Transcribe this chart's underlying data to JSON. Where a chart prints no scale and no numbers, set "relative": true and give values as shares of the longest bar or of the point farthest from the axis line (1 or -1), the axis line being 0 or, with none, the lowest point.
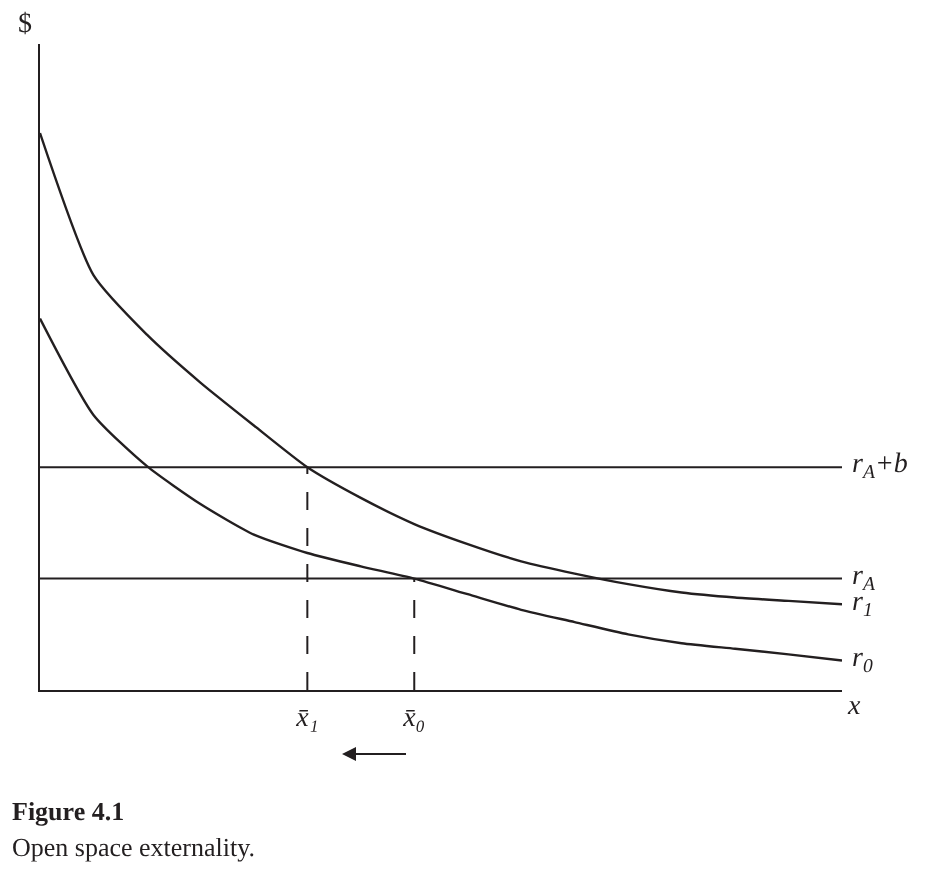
{
  "chart_data": {
    "type": "line",
    "relative": true,
    "xlabel": "x",
    "ylabel": "$",
    "categories": [
      null,
      null,
      null,
      null,
      null,
      "x̄₁",
      null,
      "x̄₀",
      null,
      null,
      null,
      null,
      null,
      null,
      null,
      null
    ],
    "series": [
      {
        "name": "r$_{1}$",
        "color": "#231f20",
        "values": [
          1,
          0.745,
          0.638,
          0.552,
          0.475,
          0.4,
          0.345,
          0.298,
          0.262,
          0.231,
          0.209,
          0.19,
          0.175,
          0.166,
          0.16,
          0.154
        ]
      },
      {
        "name": "r$_{0}$",
        "color": "#231f20",
        "values": [
          0.667,
          0.494,
          0.402,
          0.334,
          0.279,
          0.246,
          0.222,
          0.2,
          0.172,
          0.144,
          0.122,
          0.1,
          0.084,
          0.074,
          0.064,
          0.053
        ]
      }
    ],
    "ref_lines": [
      {
        "axis": "y",
        "value": 0.4,
        "label": "r$_{A}$+b",
        "color": "#231f20"
      },
      {
        "axis": "y",
        "value": 0.2,
        "label": "r$_{A}$",
        "color": "#231f20"
      },
      {
        "axis": "x",
        "value": "x̄₁",
        "color": "#231f20",
        "line_style": "dashed"
      },
      {
        "axis": "x",
        "value": "x̄₀",
        "color": "#231f20",
        "line_style": "dashed"
      }
    ],
    "marker": "none",
    "line_style": "solid",
    "grid": false,
    "legend": false,
    "annotations": [
      "Figure 4.1",
      "Open space externality."
    ]
  }
}
